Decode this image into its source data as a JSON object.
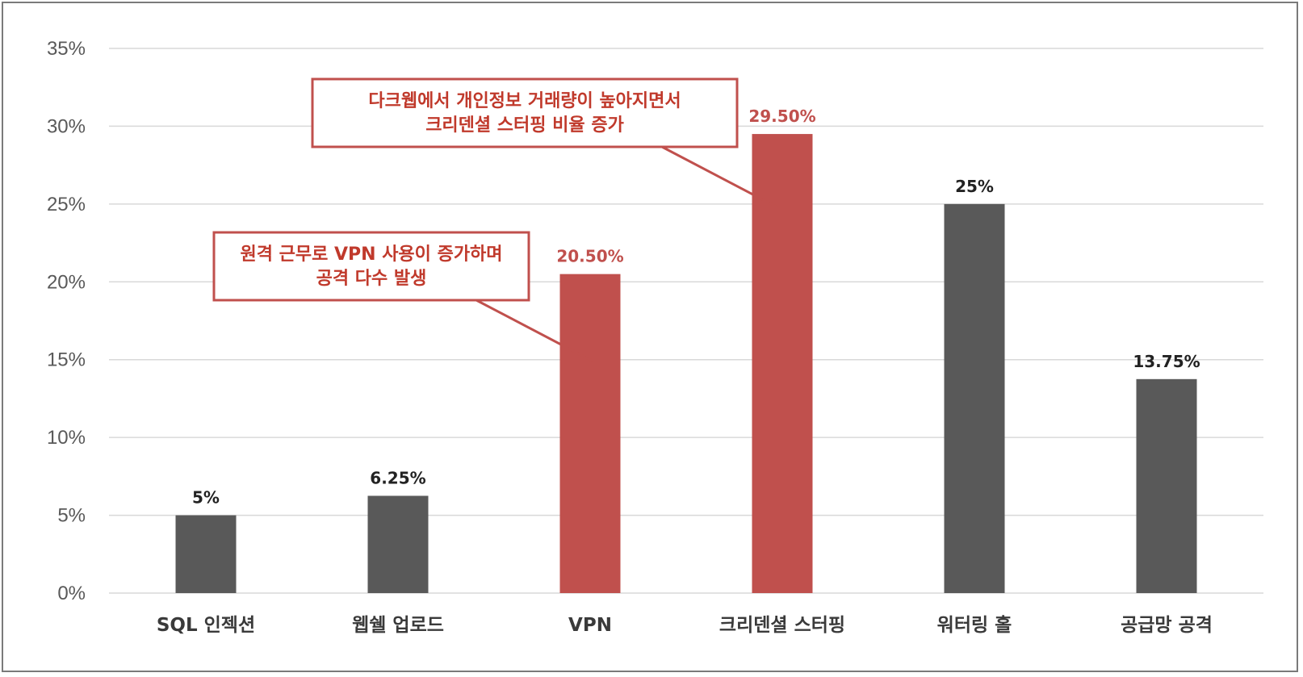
{
  "chart_data": {
    "type": "bar",
    "categories": [
      "SQL 인젝션",
      "웹쉘 업로드",
      "VPN",
      "크리덴셜 스터핑",
      "워터링 홀",
      "공급망 공격"
    ],
    "values": [
      5,
      6.25,
      20.5,
      29.5,
      25,
      13.75
    ],
    "value_labels": [
      "5%",
      "6.25%",
      "20.50%",
      "29.50%",
      "25%",
      "13.75%"
    ],
    "highlighted": [
      false,
      false,
      true,
      true,
      false,
      false
    ],
    "ylim": [
      0,
      35
    ],
    "yticks": [
      "0%",
      "5%",
      "10%",
      "15%",
      "20%",
      "25%",
      "30%",
      "35%"
    ],
    "grid": true,
    "colors": {
      "default": "#595959",
      "highlight": "#c0504d",
      "grid": "#d9d9d9"
    },
    "annotations": [
      {
        "target": "VPN",
        "lines": [
          "원격 근무로 VPN 사용이 증가하며",
          "공격 다수 발생"
        ]
      },
      {
        "target": "크리덴셜 스터핑",
        "lines": [
          "다크웹에서 개인정보 거래량이 높아지면서",
          "크리덴셜 스터핑 비율 증가"
        ]
      }
    ]
  }
}
